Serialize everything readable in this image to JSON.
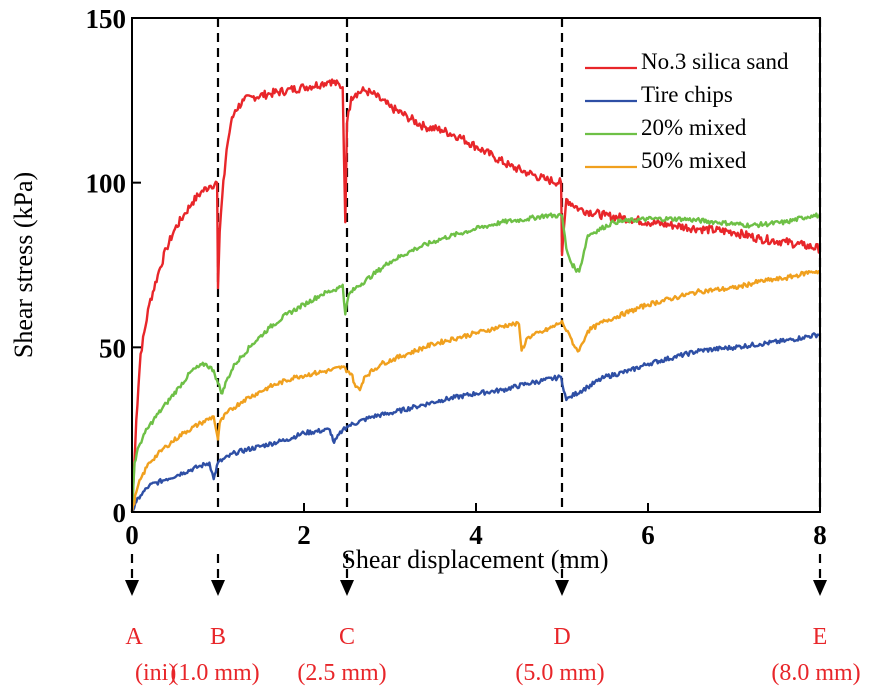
{
  "chart_data": {
    "type": "line",
    "xlabel": "Shear displacement (mm)",
    "ylabel": "Shear stress (kPa)",
    "xlim": [
      0,
      8
    ],
    "ylim": [
      0,
      150
    ],
    "x_ticks": [
      0,
      2,
      4,
      6,
      8
    ],
    "y_ticks": [
      0,
      50,
      100,
      150
    ],
    "x_tick_labels": [
      "0",
      "2",
      "4",
      "6",
      "8"
    ],
    "y_tick_labels": [
      "0",
      "50",
      "100",
      "150"
    ],
    "grid": false,
    "legend_position": "top-right",
    "series": [
      {
        "name": "No.3 silica sand",
        "color": "#e8262a",
        "x": [
          0,
          0.05,
          0.1,
          0.2,
          0.3,
          0.4,
          0.5,
          0.6,
          0.7,
          0.8,
          0.9,
          0.99,
          1.0,
          1.02,
          1.05,
          1.1,
          1.15,
          1.2,
          1.3,
          1.4,
          1.6,
          1.8,
          2.0,
          2.2,
          2.3,
          2.45,
          2.48,
          2.5,
          2.55,
          2.6,
          2.7,
          2.8,
          3.0,
          3.2,
          3.4,
          3.6,
          3.8,
          4.0,
          4.2,
          4.4,
          4.6,
          4.8,
          4.99,
          5.0,
          5.05,
          5.2,
          5.5,
          5.8,
          6.0,
          6.3,
          6.6,
          7.0,
          7.3,
          7.6,
          7.8,
          8.0
        ],
        "y": [
          0,
          28,
          48,
          63,
          72,
          80,
          86,
          90,
          94,
          97,
          99,
          100,
          68,
          85,
          96,
          110,
          118,
          122,
          125,
          126,
          127,
          128,
          129,
          130,
          131,
          129,
          88,
          118,
          126,
          127,
          128,
          127,
          123,
          120,
          117,
          116,
          114,
          111,
          108,
          105,
          103,
          101,
          100,
          78,
          95,
          92,
          90,
          89,
          88,
          87,
          86,
          85,
          83,
          82,
          81,
          80
        ]
      },
      {
        "name": "Tire chips",
        "color": "#2e4fa5",
        "x": [
          0,
          0.05,
          0.1,
          0.2,
          0.4,
          0.6,
          0.8,
          0.9,
          0.95,
          1.0,
          1.2,
          1.5,
          1.8,
          2.0,
          2.3,
          2.35,
          2.45,
          2.5,
          2.8,
          3.0,
          3.3,
          3.6,
          4.0,
          4.3,
          4.6,
          4.99,
          5.05,
          5.1,
          5.3,
          5.5,
          5.8,
          6.0,
          6.3,
          6.6,
          7.0,
          7.3,
          7.6,
          7.8,
          8.0
        ],
        "y": [
          0,
          3,
          5,
          8,
          10,
          12,
          14,
          15,
          10,
          15,
          18,
          20,
          22,
          24,
          25,
          21,
          25,
          26,
          29,
          30,
          32,
          34,
          36,
          37,
          39,
          41,
          34,
          35,
          38,
          41,
          43,
          45,
          47,
          49,
          50,
          51,
          52,
          53,
          54
        ]
      },
      {
        "name": "20% mixed",
        "color": "#6ec046",
        "x": [
          0,
          0.03,
          0.08,
          0.15,
          0.25,
          0.4,
          0.55,
          0.7,
          0.85,
          0.95,
          1.0,
          1.05,
          1.1,
          1.2,
          1.4,
          1.6,
          1.8,
          2.0,
          2.2,
          2.4,
          2.45,
          2.48,
          2.52,
          2.6,
          2.8,
          3.0,
          3.3,
          3.6,
          4.0,
          4.3,
          4.6,
          4.8,
          5.0,
          5.05,
          5.1,
          5.15,
          5.2,
          5.3,
          5.6,
          6.0,
          6.4,
          6.8,
          7.2,
          7.6,
          7.9,
          8.0
        ],
        "y": [
          0,
          15,
          20,
          24,
          28,
          33,
          38,
          43,
          45,
          43,
          39,
          36,
          40,
          45,
          51,
          56,
          60,
          63,
          66,
          68,
          69,
          60,
          66,
          68,
          72,
          76,
          80,
          83,
          86,
          88,
          89,
          90,
          90,
          80,
          76,
          74,
          73,
          84,
          88,
          89,
          89,
          88,
          87,
          88,
          90,
          90
        ]
      },
      {
        "name": "50% mixed",
        "color": "#f0a01e",
        "x": [
          0,
          0.05,
          0.1,
          0.2,
          0.4,
          0.6,
          0.8,
          0.95,
          1.0,
          1.02,
          1.1,
          1.3,
          1.6,
          1.9,
          2.1,
          2.3,
          2.45,
          2.55,
          2.6,
          2.65,
          2.7,
          2.9,
          3.2,
          3.5,
          3.8,
          4.1,
          4.4,
          4.5,
          4.53,
          4.6,
          4.8,
          4.95,
          5.0,
          5.05,
          5.1,
          5.15,
          5.2,
          5.3,
          5.5,
          5.8,
          6.0,
          6.3,
          6.6,
          7.0,
          7.3,
          7.6,
          7.9,
          8.0
        ],
        "y": [
          0,
          6,
          10,
          15,
          20,
          24,
          27,
          29,
          22,
          27,
          30,
          34,
          38,
          41,
          42,
          43,
          44,
          42,
          38,
          37,
          41,
          45,
          48,
          51,
          53,
          55,
          57,
          57,
          49,
          53,
          55,
          57,
          58,
          55,
          53,
          50,
          49,
          55,
          58,
          61,
          63,
          65,
          67,
          68,
          70,
          71,
          73,
          73
        ]
      }
    ]
  },
  "stage_markers": [
    {
      "letter": "A",
      "label": "(ini)",
      "x": 0
    },
    {
      "letter": "B",
      "label": "(1.0 mm)",
      "x": 1.0
    },
    {
      "letter": "C",
      "label": "(2.5 mm)",
      "x": 2.5
    },
    {
      "letter": "D",
      "label": "(5.0 mm)",
      "x": 5.0
    },
    {
      "letter": "E",
      "label": "(8.0 mm)",
      "x": 8.0
    }
  ],
  "style": {
    "marker_text_color": "#e8262a",
    "axis_color": "#000000",
    "dash_color": "#000000"
  }
}
